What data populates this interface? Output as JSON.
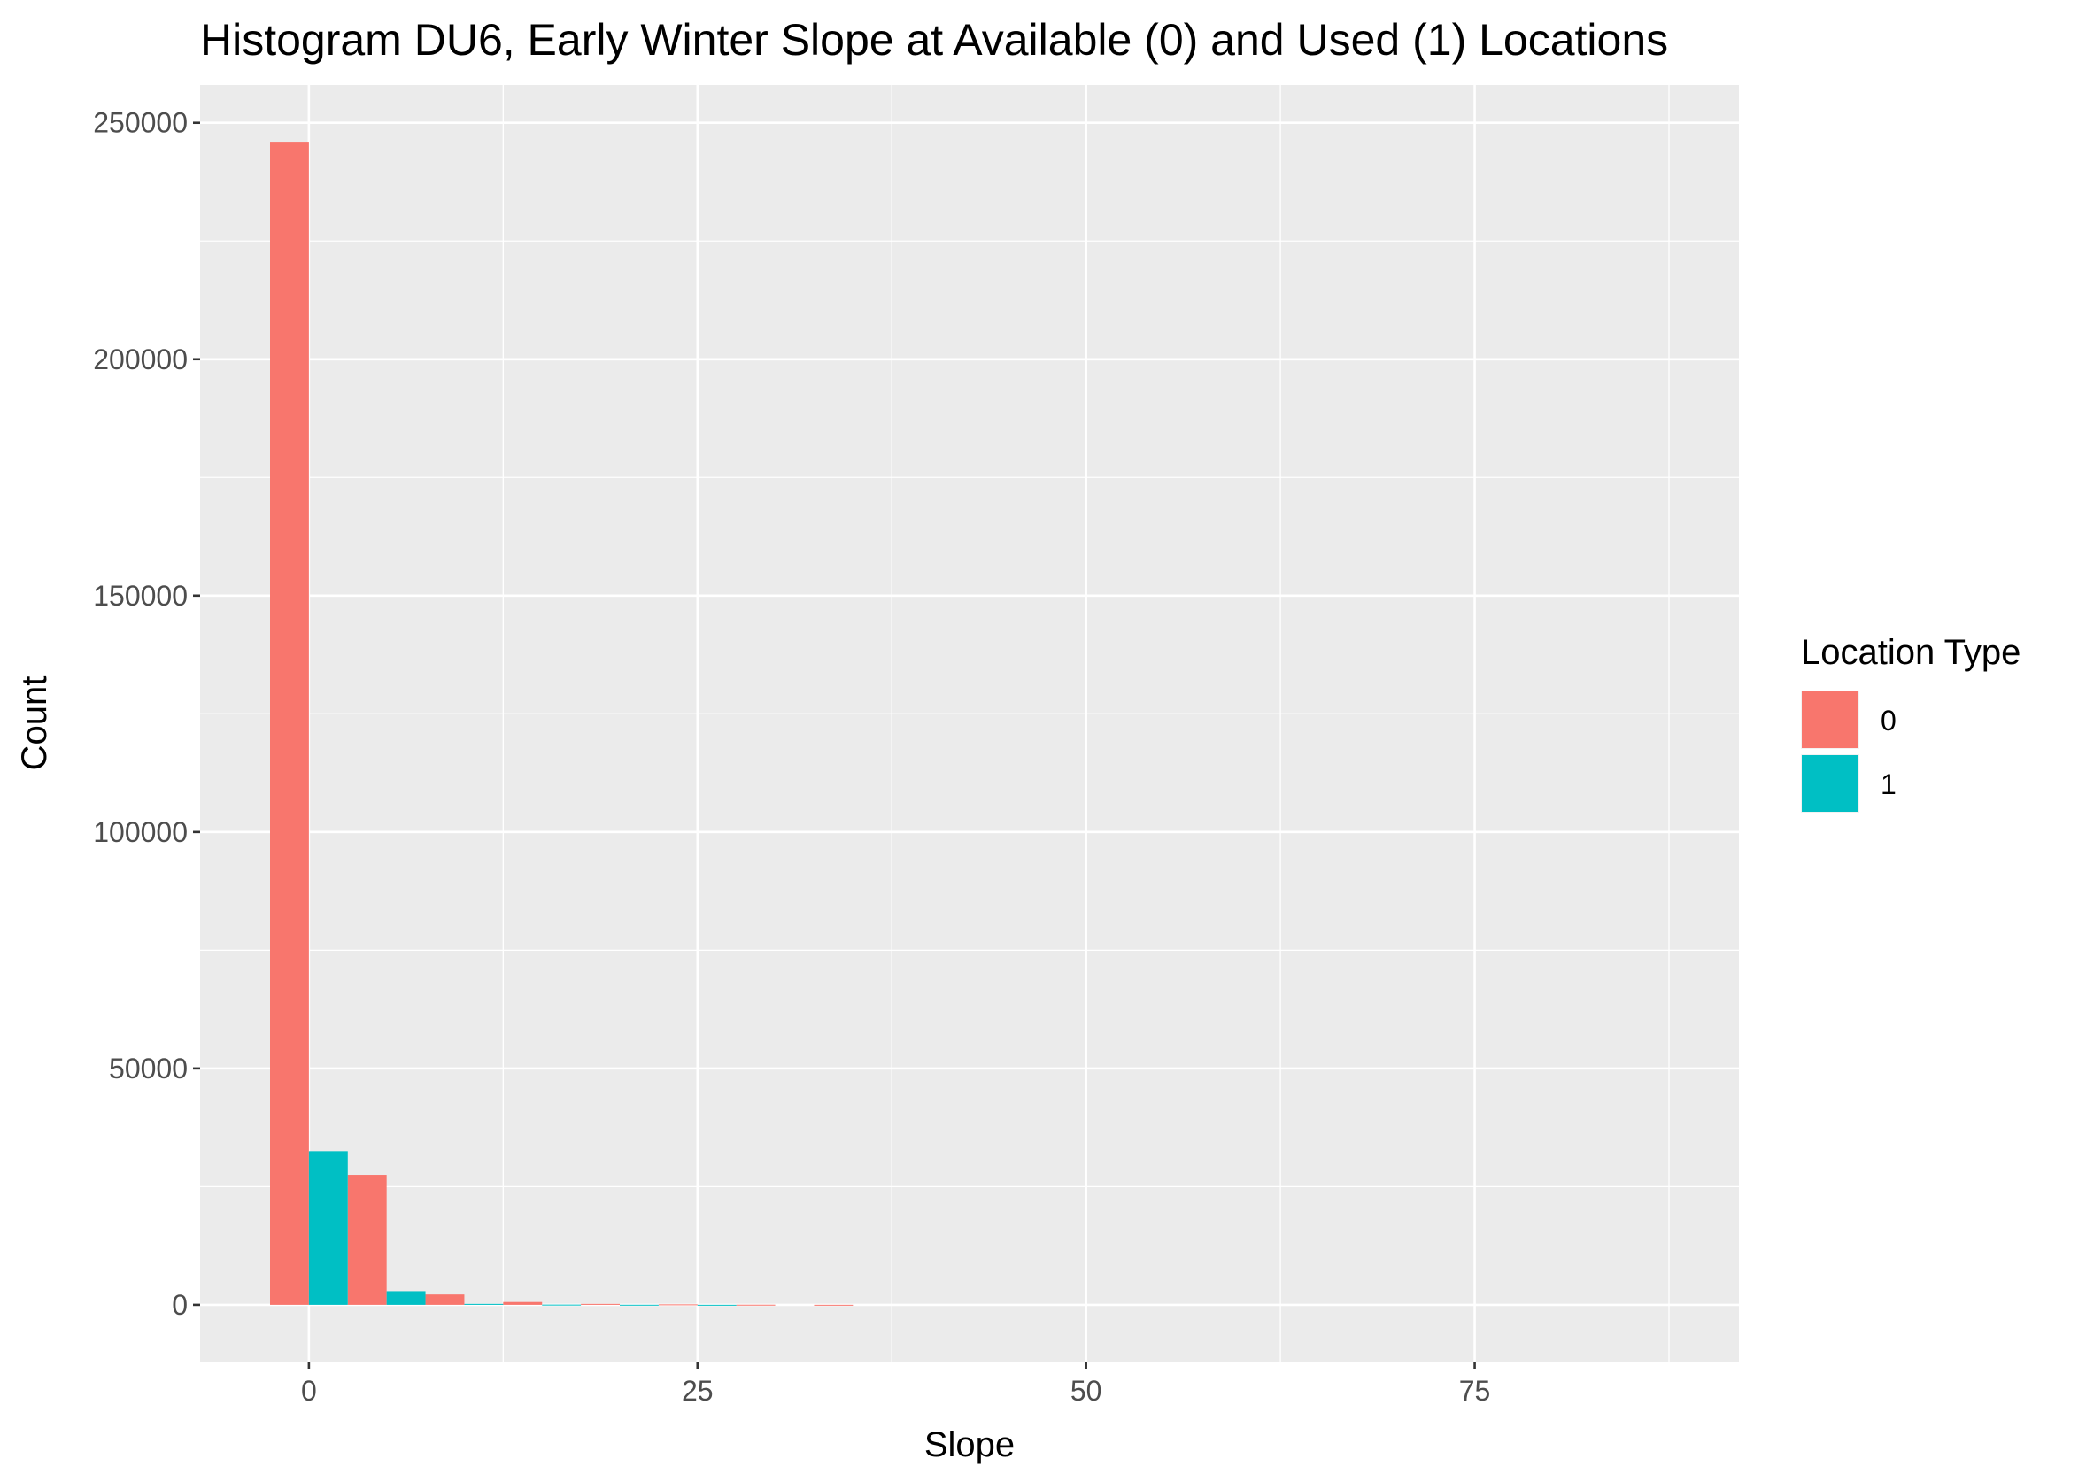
{
  "chart_data": {
    "type": "bar",
    "subtype": "histogram",
    "title": "Histogram DU6, Early Winter Slope at Available (0) and Used (1) Locations",
    "xlabel": "Slope",
    "ylabel": "Count",
    "xlim": [
      -7,
      92
    ],
    "ylim": [
      -12000,
      258000
    ],
    "x_ticks": [
      0,
      25,
      50,
      75
    ],
    "x_tick_labels": [
      "0",
      "25",
      "50",
      "75"
    ],
    "y_ticks": [
      0,
      50000,
      100000,
      150000,
      200000,
      250000
    ],
    "y_tick_labels": [
      "0",
      "50000",
      "100000",
      "150000",
      "200000",
      "250000"
    ],
    "grid": true,
    "bin_width": 5,
    "bins": [
      0,
      5,
      10,
      15,
      20,
      25,
      30,
      35,
      40,
      45,
      50,
      55,
      60,
      65,
      70,
      75,
      80,
      85
    ],
    "position": "dodge",
    "legend": {
      "title": "Location Type",
      "placement": "right"
    },
    "series": [
      {
        "name": "0",
        "color": "#F8766D",
        "values": [
          246000,
          27500,
          2200,
          600,
          200,
          100,
          30,
          10,
          0,
          0,
          0,
          0,
          0,
          0,
          0,
          0,
          0,
          0
        ]
      },
      {
        "name": "1",
        "color": "#00BFC4",
        "values": [
          32500,
          2900,
          200,
          50,
          20,
          10,
          0,
          0,
          0,
          0,
          0,
          0,
          0,
          0,
          0,
          0,
          0,
          0
        ]
      }
    ]
  }
}
